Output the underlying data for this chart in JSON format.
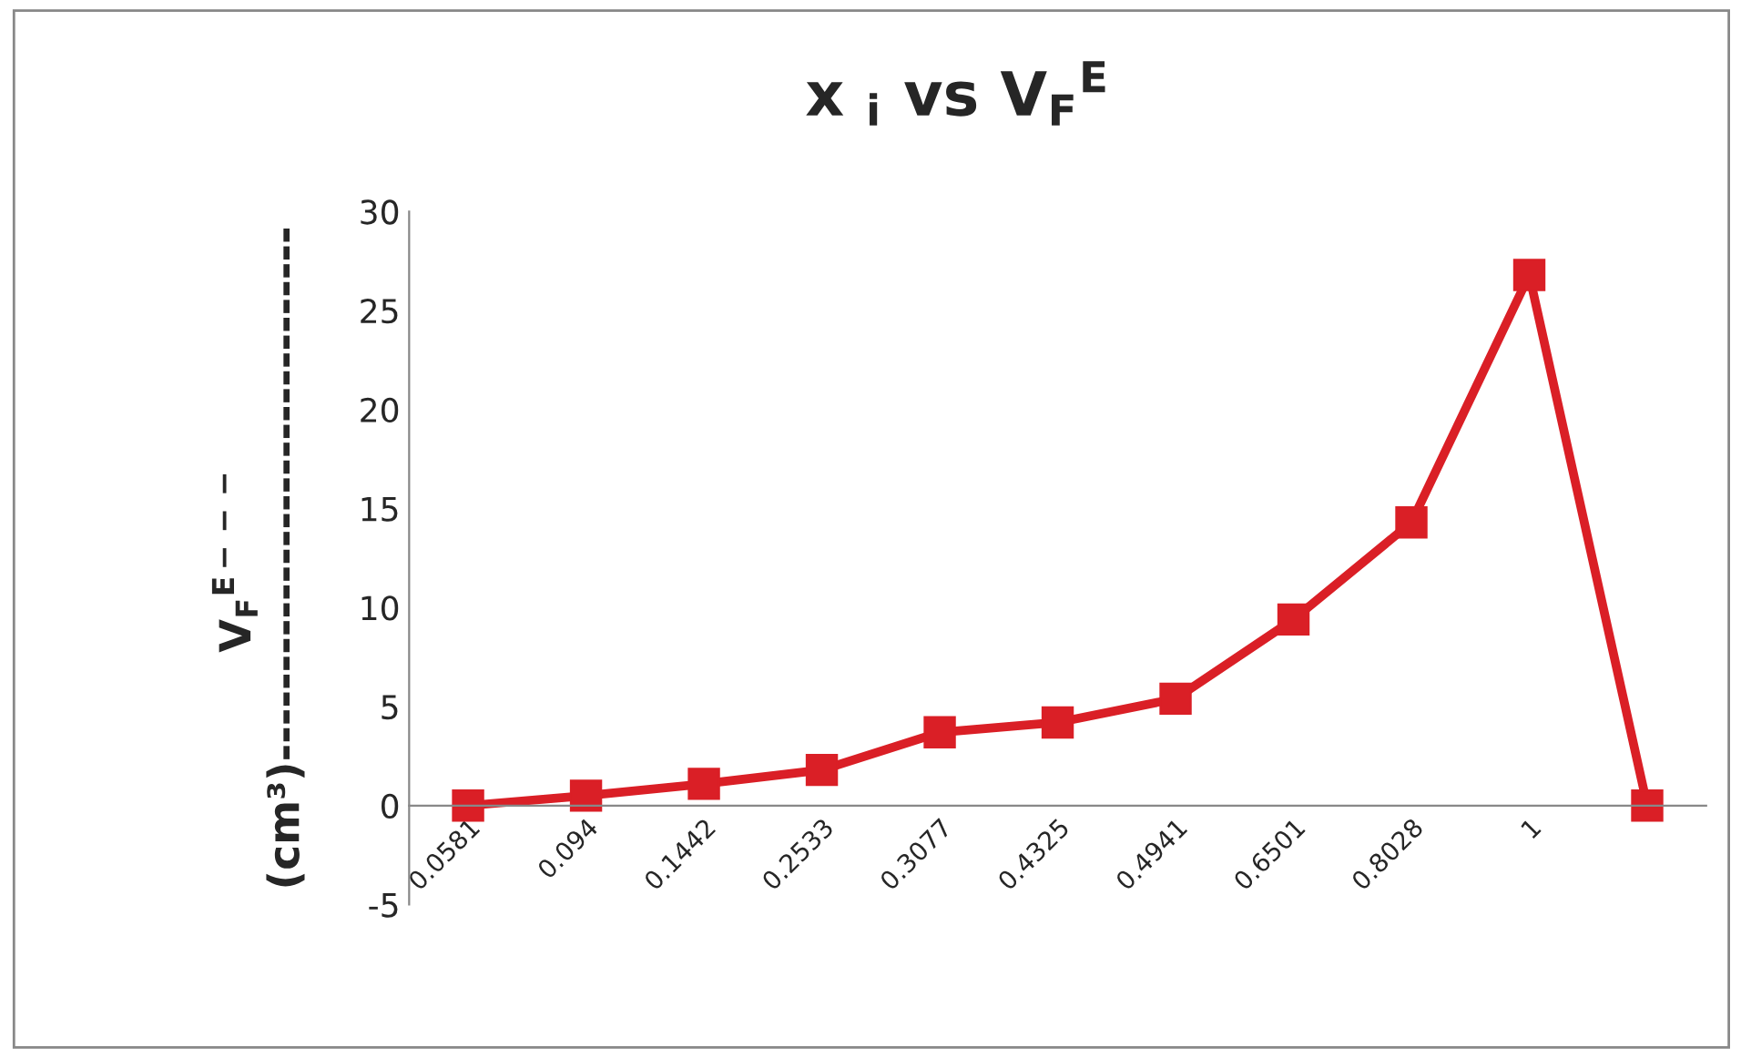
{
  "chart_data": {
    "type": "line",
    "title": "x $_{i}$ vs V$_{F}$$^{E}$",
    "ylabel": "V$_{F}$$^{E−−−}$\n(cm³)------------------------------",
    "categories": [
      "0.0581",
      "0.094",
      "0.1442",
      "0.2533",
      "0.3077",
      "0.4325",
      "0.4941",
      "0.6501",
      "0.8028",
      "1",
      null
    ],
    "series": [
      {
        "color": "#da1f26",
        "values": [
          0,
          0.5,
          1.1,
          1.8,
          3.7,
          4.2,
          5.4,
          9.4,
          14.3,
          26.8,
          0
        ]
      }
    ],
    "ylim": [
      -5,
      30
    ],
    "yticks": [
      -5,
      0,
      5,
      10,
      15,
      20,
      25,
      30
    ],
    "legend": false,
    "marker": "square",
    "line_style": "solid"
  }
}
